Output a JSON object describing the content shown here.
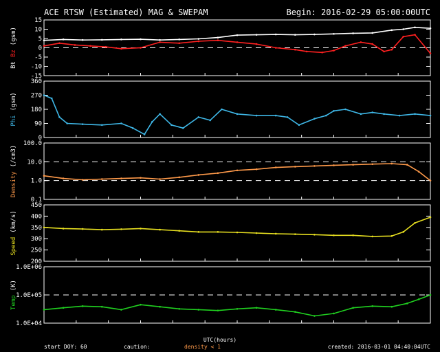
{
  "header": {
    "title": "ACE RTSW (Estimated) MAG & SWEPAM",
    "begin": "Begin: 2016-02-29 05:00:00UTC"
  },
  "footer": {
    "start_doy": "start DOY:  60",
    "caution": "caution:",
    "density_note": "density < 1",
    "created": "created: 2016-03-01 04:40:04UTC",
    "xlabel": "UTC(hours)"
  },
  "colors": {
    "bt": "#ffffff",
    "bz": "#ff2020",
    "phi": "#3fb8e8",
    "density": "#ff9a4a",
    "speed": "#e8e020",
    "temp": "#20d020"
  },
  "chart_data": [
    {
      "type": "line",
      "id": "mag",
      "ylabel_parts": [
        "Bt",
        "Bz",
        "(gsm)"
      ],
      "ylim": [
        -15,
        15
      ],
      "ticks": [
        -15,
        -10,
        -5,
        0,
        5,
        10,
        15
      ],
      "tick_labels": [
        "-15",
        "-10",
        "-5",
        "0",
        "5",
        "10",
        "15"
      ],
      "ref_lines": [
        0
      ],
      "series": [
        {
          "name": "Bt",
          "color": "#ffffff",
          "x": [
            0,
            0.05,
            0.1,
            0.15,
            0.2,
            0.25,
            0.3,
            0.35,
            0.4,
            0.45,
            0.5,
            0.55,
            0.6,
            0.65,
            0.7,
            0.75,
            0.8,
            0.85,
            0.9,
            0.93,
            0.96,
            1
          ],
          "values": [
            4,
            4.5,
            4.2,
            4.3,
            4.5,
            4.6,
            4.2,
            4.5,
            4.8,
            5.5,
            6.8,
            7,
            7.2,
            7,
            7.2,
            7.5,
            7.8,
            8,
            9.5,
            10,
            11,
            10.5
          ]
        },
        {
          "name": "Bz",
          "color": "#ff2020",
          "x": [
            0,
            0.04,
            0.08,
            0.12,
            0.16,
            0.2,
            0.25,
            0.3,
            0.35,
            0.4,
            0.45,
            0.5,
            0.55,
            0.6,
            0.65,
            0.68,
            0.72,
            0.75,
            0.78,
            0.82,
            0.85,
            0.88,
            0.9,
            0.93,
            0.96,
            1
          ],
          "values": [
            1,
            2.5,
            1.5,
            1,
            0.5,
            -0.5,
            0,
            3,
            2.5,
            3.5,
            4,
            3,
            2,
            0,
            -1,
            -2,
            -2.5,
            -1.5,
            1,
            3,
            2,
            -2,
            -1,
            6,
            7,
            -3
          ]
        }
      ]
    },
    {
      "type": "scatter",
      "id": "phi",
      "ylabel_parts": [
        "Phi",
        "(gsm)"
      ],
      "ylim": [
        0,
        360
      ],
      "ticks": [
        0,
        90,
        180,
        270,
        360
      ],
      "tick_labels": [
        "0",
        "90",
        "180",
        "270",
        "360"
      ],
      "ref_lines": [],
      "series": [
        {
          "name": "Phi",
          "color": "#3fb8e8",
          "x": [
            0,
            0.02,
            0.04,
            0.06,
            0.1,
            0.15,
            0.2,
            0.23,
            0.26,
            0.28,
            0.3,
            0.33,
            0.36,
            0.4,
            0.43,
            0.46,
            0.5,
            0.55,
            0.6,
            0.63,
            0.66,
            0.7,
            0.73,
            0.75,
            0.78,
            0.82,
            0.85,
            0.88,
            0.92,
            0.96,
            1
          ],
          "values": [
            270,
            250,
            130,
            90,
            85,
            80,
            90,
            60,
            20,
            100,
            150,
            80,
            60,
            130,
            110,
            180,
            150,
            140,
            140,
            130,
            80,
            120,
            140,
            170,
            180,
            150,
            160,
            150,
            140,
            150,
            140
          ]
        }
      ]
    },
    {
      "type": "scatter",
      "id": "density",
      "scale": "log",
      "ylabel_parts": [
        "Density",
        "(/cm3)"
      ],
      "ylim": [
        0.1,
        100
      ],
      "ticks": [
        0.1,
        1,
        10,
        100
      ],
      "tick_labels": [
        "0.1",
        "1.0",
        "10.0",
        "100.0"
      ],
      "ref_lines": [
        1,
        10
      ],
      "series": [
        {
          "name": "Density",
          "color": "#ff9a4a",
          "x": [
            0,
            0.05,
            0.1,
            0.15,
            0.2,
            0.25,
            0.3,
            0.35,
            0.4,
            0.45,
            0.5,
            0.55,
            0.6,
            0.65,
            0.7,
            0.75,
            0.8,
            0.85,
            0.9,
            0.94,
            0.97,
            1
          ],
          "values": [
            1.8,
            1.3,
            1.1,
            1.2,
            1.3,
            1.4,
            1.2,
            1.5,
            2,
            2.5,
            3.5,
            4,
            5,
            5.5,
            6,
            6.5,
            7,
            7.5,
            8,
            7,
            3,
            1
          ]
        }
      ]
    },
    {
      "type": "scatter",
      "id": "speed",
      "ylabel_parts": [
        "Speed",
        "(km/s)"
      ],
      "ylim": [
        200,
        450
      ],
      "ticks": [
        200,
        250,
        300,
        350,
        400,
        450
      ],
      "tick_labels": [
        "200",
        "250",
        "300",
        "350",
        "400",
        "450"
      ],
      "ref_lines": [],
      "series": [
        {
          "name": "Speed",
          "color": "#e8e020",
          "x": [
            0,
            0.05,
            0.1,
            0.15,
            0.2,
            0.25,
            0.3,
            0.35,
            0.4,
            0.45,
            0.5,
            0.55,
            0.6,
            0.65,
            0.7,
            0.75,
            0.8,
            0.85,
            0.9,
            0.93,
            0.96,
            1
          ],
          "values": [
            350,
            345,
            343,
            340,
            342,
            345,
            340,
            335,
            330,
            330,
            328,
            325,
            322,
            320,
            318,
            315,
            315,
            310,
            312,
            330,
            370,
            395
          ]
        }
      ]
    },
    {
      "type": "scatter",
      "id": "temp",
      "scale": "log",
      "ylabel_parts": [
        "Temp",
        "(K)"
      ],
      "ylim": [
        10000,
        1000000
      ],
      "ticks": [
        10000,
        100000,
        1000000
      ],
      "tick_labels": [
        "1.0E+04",
        "1.0E+05",
        "1.0E+06"
      ],
      "ref_lines": [
        100000
      ],
      "series": [
        {
          "name": "Temp",
          "color": "#20d020",
          "x": [
            0,
            0.05,
            0.1,
            0.15,
            0.2,
            0.25,
            0.3,
            0.35,
            0.4,
            0.45,
            0.5,
            0.55,
            0.6,
            0.65,
            0.7,
            0.75,
            0.8,
            0.85,
            0.9,
            0.94,
            0.97,
            1
          ],
          "values": [
            30000,
            35000,
            40000,
            38000,
            30000,
            45000,
            38000,
            32000,
            30000,
            28000,
            32000,
            35000,
            30000,
            25000,
            18000,
            22000,
            35000,
            40000,
            38000,
            50000,
            70000,
            100000
          ]
        }
      ]
    }
  ]
}
